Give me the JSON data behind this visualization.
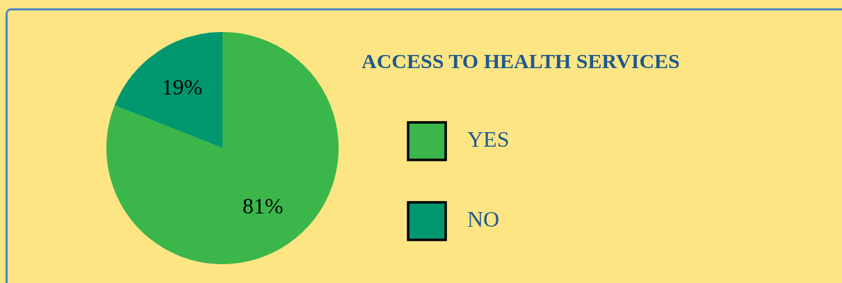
{
  "chart_data": {
    "type": "pie",
    "title": "ACCESS TO HEALTH SERVICES",
    "categories": [
      "YES",
      "NO"
    ],
    "values": [
      81,
      19
    ],
    "colors": [
      "#3bb64a",
      "#00976e"
    ],
    "value_labels": [
      "81%",
      "19%"
    ],
    "legend": "right"
  }
}
